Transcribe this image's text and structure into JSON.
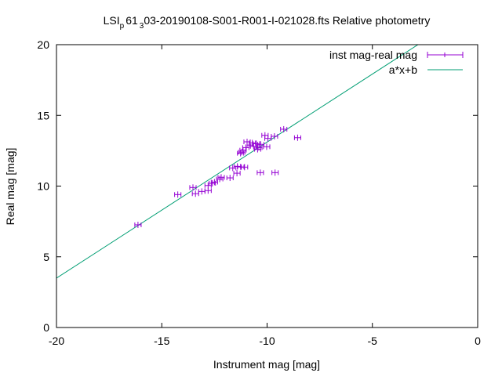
{
  "chart_data": {
    "type": "scatter",
    "title_parts": [
      "LSI",
      "p",
      "61",
      "3",
      "03-20190108-S001-R001-I-021028.fts Relative photometry"
    ],
    "title": "LSI_p61_303-20190108-S001-R001-I-021028.fts Relative photometry",
    "xlabel": "Instrument mag [mag]",
    "ylabel": "Real mag [mag]",
    "xlim": [
      -20,
      0
    ],
    "ylim": [
      0,
      20
    ],
    "xticks": [
      -20,
      -15,
      -10,
      -5,
      0
    ],
    "yticks": [
      0,
      5,
      10,
      15,
      20
    ],
    "grid": false,
    "legend_position": "top-right",
    "series": [
      {
        "name": "inst mag-real mag",
        "kind": "points-xerrorbars",
        "color": "#9400d3",
        "xerr": 0.15,
        "points": [
          [
            -16.13,
            7.26
          ],
          [
            -14.24,
            9.4
          ],
          [
            -13.52,
            9.9
          ],
          [
            -13.4,
            9.46
          ],
          [
            -13.1,
            9.62
          ],
          [
            -12.8,
            10.04
          ],
          [
            -12.8,
            9.68
          ],
          [
            -12.6,
            10.2
          ],
          [
            -12.5,
            10.28
          ],
          [
            -12.18,
            10.62
          ],
          [
            -12.25,
            10.5
          ],
          [
            -11.76,
            10.58
          ],
          [
            -11.43,
            10.91
          ],
          [
            -11.63,
            11.28
          ],
          [
            -11.41,
            11.39
          ],
          [
            -11.25,
            11.35
          ],
          [
            -11.07,
            11.34
          ],
          [
            -10.32,
            10.95
          ],
          [
            -9.62,
            10.95
          ],
          [
            -11.26,
            12.32
          ],
          [
            -11.14,
            12.54
          ],
          [
            -11.2,
            12.4
          ],
          [
            -11.01,
            12.72
          ],
          [
            -10.95,
            13.13
          ],
          [
            -10.8,
            12.9
          ],
          [
            -10.7,
            13.05
          ],
          [
            -10.64,
            12.81
          ],
          [
            -10.51,
            13.0
          ],
          [
            -10.45,
            12.6
          ],
          [
            -10.39,
            12.72
          ],
          [
            -10.3,
            12.95
          ],
          [
            -10.02,
            12.78
          ],
          [
            -10.1,
            13.59
          ],
          [
            -9.96,
            13.37
          ],
          [
            -9.65,
            13.52
          ],
          [
            -9.21,
            14.02
          ],
          [
            -8.55,
            13.42
          ]
        ]
      },
      {
        "name": "a*x+b",
        "kind": "line",
        "color": "#009e73",
        "a": 0.962,
        "b": 22.73
      }
    ]
  }
}
